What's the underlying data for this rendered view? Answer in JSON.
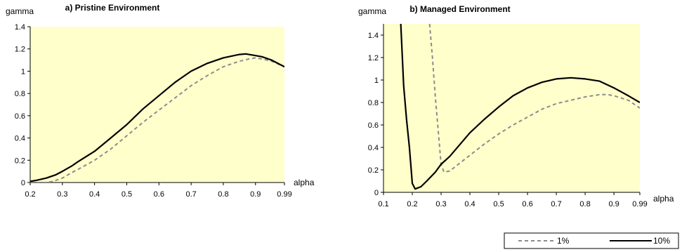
{
  "chart_data": [
    {
      "type": "line",
      "title": "a) Pristine Environment",
      "xlabel": "alpha",
      "ylabel": "gamma",
      "x_ticks": [
        "0.2",
        "0.3",
        "0.4",
        "0.5",
        "0.6",
        "0.7",
        "0.8",
        "0.9",
        "0.99"
      ],
      "y_ticks": [
        "0",
        "0.2",
        "0.4",
        "0.6",
        "0.8",
        "1",
        "1.2",
        "1.4"
      ],
      "xlim": [
        0.2,
        0.99
      ],
      "ylim": [
        0,
        1.4
      ],
      "plot_bg": "#FFFFCC",
      "grid": false,
      "series": [
        {
          "name": "1%",
          "style": "dashed",
          "color": "#8C8C8C",
          "points": [
            [
              0.2,
              0.0
            ],
            [
              0.22,
              0.0
            ],
            [
              0.25,
              0.0
            ],
            [
              0.27,
              0.01
            ],
            [
              0.3,
              0.04
            ],
            [
              0.33,
              0.09
            ],
            [
              0.35,
              0.12
            ],
            [
              0.4,
              0.2
            ],
            [
              0.45,
              0.3
            ],
            [
              0.5,
              0.42
            ],
            [
              0.55,
              0.54
            ],
            [
              0.6,
              0.65
            ],
            [
              0.65,
              0.76
            ],
            [
              0.7,
              0.87
            ],
            [
              0.75,
              0.96
            ],
            [
              0.8,
              1.04
            ],
            [
              0.85,
              1.09
            ],
            [
              0.88,
              1.11
            ],
            [
              0.9,
              1.12
            ],
            [
              0.92,
              1.11
            ],
            [
              0.95,
              1.09
            ],
            [
              0.99,
              1.04
            ]
          ]
        },
        {
          "name": "10%",
          "style": "solid",
          "color": "#000000",
          "points": [
            [
              0.2,
              0.01
            ],
            [
              0.22,
              0.02
            ],
            [
              0.25,
              0.04
            ],
            [
              0.28,
              0.07
            ],
            [
              0.3,
              0.1
            ],
            [
              0.33,
              0.15
            ],
            [
              0.35,
              0.19
            ],
            [
              0.4,
              0.28
            ],
            [
              0.45,
              0.4
            ],
            [
              0.5,
              0.52
            ],
            [
              0.55,
              0.66
            ],
            [
              0.6,
              0.78
            ],
            [
              0.65,
              0.9
            ],
            [
              0.7,
              1.0
            ],
            [
              0.75,
              1.07
            ],
            [
              0.8,
              1.12
            ],
            [
              0.85,
              1.15
            ],
            [
              0.87,
              1.155
            ],
            [
              0.9,
              1.14
            ],
            [
              0.92,
              1.13
            ],
            [
              0.95,
              1.1
            ],
            [
              0.99,
              1.04
            ]
          ]
        }
      ]
    },
    {
      "type": "line",
      "title": "b) Managed Environment",
      "xlabel": "alpha",
      "ylabel": "gamma",
      "x_ticks": [
        "0.1",
        "0.2",
        "0.3",
        "0.4",
        "0.5",
        "0.6",
        "0.7",
        "0.8",
        "0.9",
        "0.99"
      ],
      "y_ticks": [
        "0",
        "0.2",
        "0.4",
        "0.6",
        "0.8",
        "1",
        "1.2",
        "1.4"
      ],
      "xlim": [
        0.1,
        0.99
      ],
      "ylim": [
        0,
        1.5
      ],
      "plot_bg": "#FFFFCC",
      "grid": false,
      "series": [
        {
          "name": "1%",
          "style": "dashed",
          "color": "#8C8C8C",
          "points": [
            [
              0.26,
              1.5
            ],
            [
              0.27,
              1.2
            ],
            [
              0.28,
              0.85
            ],
            [
              0.29,
              0.55
            ],
            [
              0.3,
              0.25
            ],
            [
              0.31,
              0.18
            ],
            [
              0.33,
              0.19
            ],
            [
              0.35,
              0.23
            ],
            [
              0.4,
              0.33
            ],
            [
              0.45,
              0.43
            ],
            [
              0.5,
              0.52
            ],
            [
              0.55,
              0.6
            ],
            [
              0.6,
              0.67
            ],
            [
              0.65,
              0.74
            ],
            [
              0.7,
              0.79
            ],
            [
              0.75,
              0.82
            ],
            [
              0.8,
              0.85
            ],
            [
              0.85,
              0.87
            ],
            [
              0.88,
              0.87
            ],
            [
              0.9,
              0.86
            ],
            [
              0.95,
              0.82
            ],
            [
              0.99,
              0.75
            ]
          ]
        },
        {
          "name": "10%",
          "style": "solid",
          "color": "#000000",
          "points": [
            [
              0.16,
              1.5
            ],
            [
              0.165,
              1.22
            ],
            [
              0.17,
              0.95
            ],
            [
              0.18,
              0.65
            ],
            [
              0.19,
              0.4
            ],
            [
              0.2,
              0.08
            ],
            [
              0.21,
              0.03
            ],
            [
              0.23,
              0.05
            ],
            [
              0.25,
              0.1
            ],
            [
              0.28,
              0.18
            ],
            [
              0.3,
              0.25
            ],
            [
              0.33,
              0.32
            ],
            [
              0.35,
              0.38
            ],
            [
              0.4,
              0.53
            ],
            [
              0.45,
              0.65
            ],
            [
              0.5,
              0.76
            ],
            [
              0.55,
              0.86
            ],
            [
              0.6,
              0.93
            ],
            [
              0.65,
              0.98
            ],
            [
              0.7,
              1.01
            ],
            [
              0.75,
              1.02
            ],
            [
              0.8,
              1.01
            ],
            [
              0.85,
              0.99
            ],
            [
              0.9,
              0.93
            ],
            [
              0.95,
              0.86
            ],
            [
              0.99,
              0.8
            ]
          ]
        }
      ]
    }
  ],
  "legend": {
    "items": [
      {
        "label": "1%",
        "style": "dashed",
        "color": "#8C8C8C"
      },
      {
        "label": "10%",
        "style": "solid",
        "color": "#000000"
      }
    ]
  }
}
